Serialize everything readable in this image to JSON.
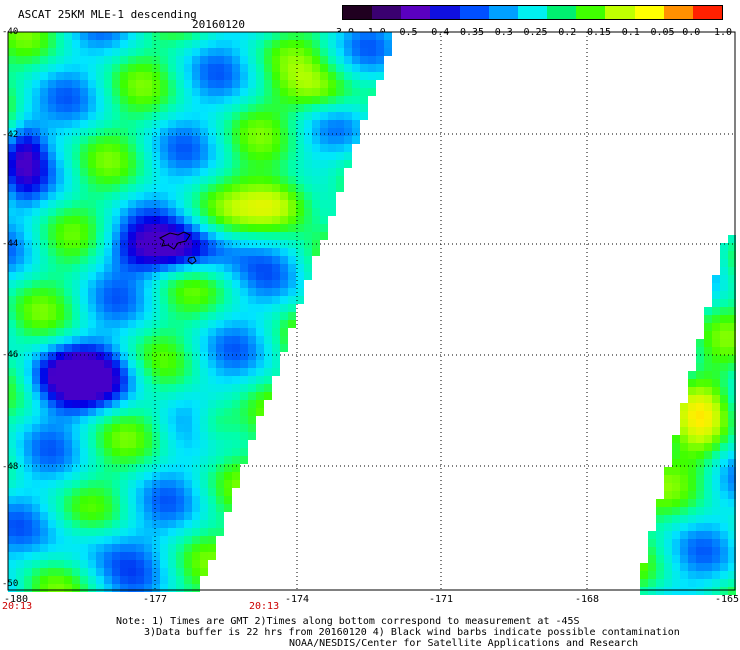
{
  "header": {
    "title": "ASCAT 25KM MLE-1 descending",
    "date": "20160120"
  },
  "colorbar": {
    "labels": [
      "-3.0",
      "-1.0",
      "-0.5",
      "-0.4",
      "-0.35",
      "-0.3",
      "-0.25",
      "-0.2",
      "-0.15",
      "-0.1",
      "-0.05",
      "0.0",
      "1.0"
    ],
    "colors": [
      "#200020",
      "#3a0070",
      "#5a00c0",
      "#1010e0",
      "#0050ff",
      "#00a0ff",
      "#00f0f0",
      "#00f070",
      "#40ff00",
      "#c0ff00",
      "#ffff00",
      "#ff9000",
      "#ff2000"
    ]
  },
  "map": {
    "y_labels": [
      "-40",
      "-42",
      "-44",
      "-46",
      "-48",
      "-50"
    ],
    "x_labels": [
      "-180",
      "-177",
      "-174",
      "-171",
      "-168",
      "-165"
    ],
    "time_labels": [
      "20:13",
      "20:13"
    ]
  },
  "footer": {
    "line1": "Note: 1) Times are GMT 2)Times along bottom correspond to measurement at -45S",
    "line2": "3)Data buffer is 22 hrs from 20160120 4) Black wind barbs indicate possible contamination",
    "line3": "NOAA/NESDIS/Center for Satellite Applications and Research"
  }
}
